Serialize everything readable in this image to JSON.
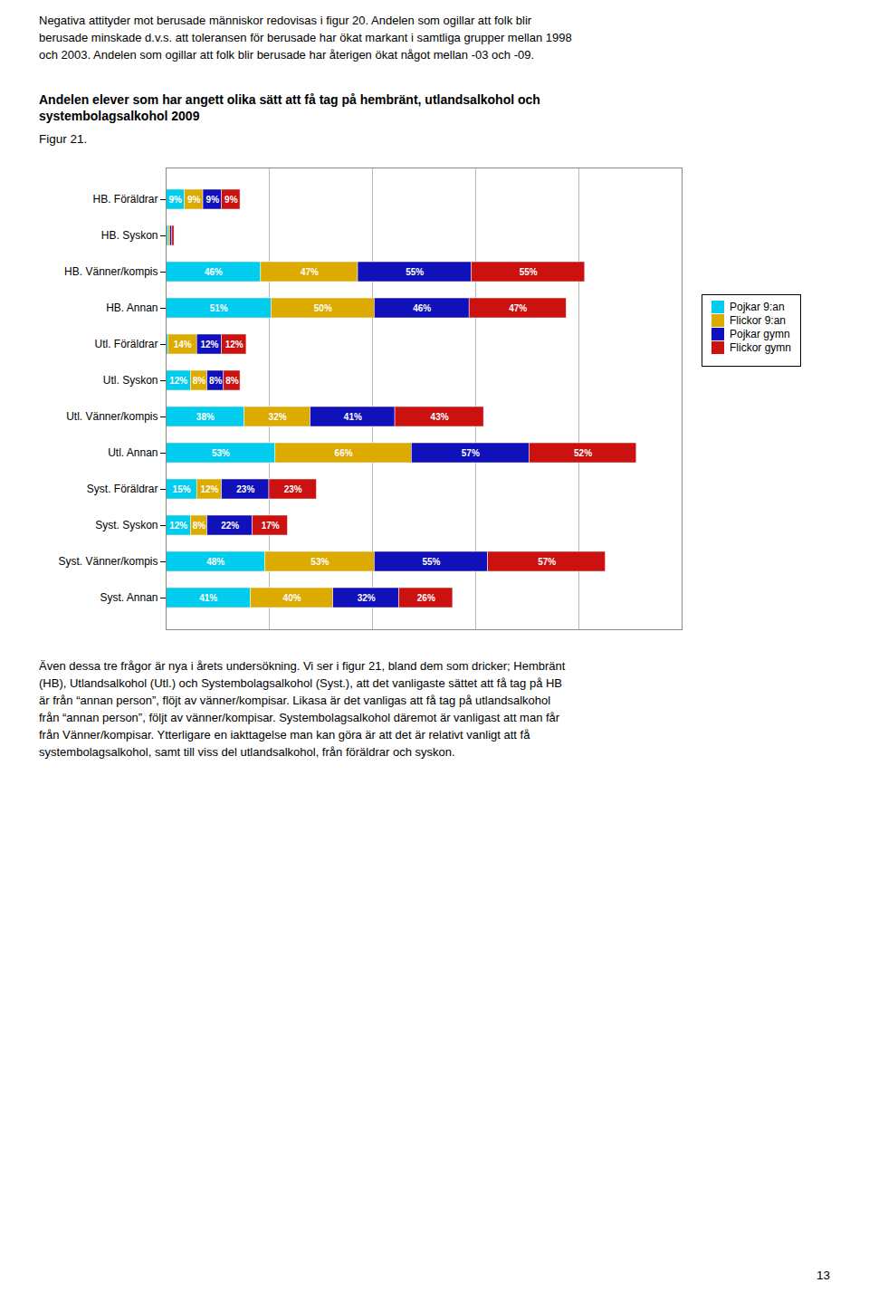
{
  "chart_data": {
    "type": "bar",
    "orientation": "horizontal",
    "stacked": true,
    "title": "Andelen elever som har angett olika sätt att få tag på hembränt, utlandsalkohol och\nsystembolagsalkohol 2009",
    "subtitle": "Figur 21.",
    "annotations": [
      "Negativa attityder mot berusade människor redovisas i figur 20. Andelen som ogillar att folk blir\nberusade minskade d.v.s. att toleransen för berusade har ökat markant i samtliga grupper mellan 1998\noch 2003. Andelen som ogillar att folk blir berusade har återigen ökat något mellan -03 och -09.",
      "Även dessa tre frågor är nya i årets undersökning. Vi ser i figur 21, bland dem som dricker; Hembränt\n(HB), Utlandsalkohol (Utl.) och Systembolagsalkohol (Syst.), att det vanligaste sättet att få tag på HB\när från “annan person”, flöjt av vänner/kompisar. Likasa är det vanligas att få tag på utlandsalkohol\nfrån “annan person”, följt av vänner/kompisar. Systembolagsalkohol däremot är vanligast att man får\nfrån Vänner/kompisar. Ytterligare en iakttagelse man kan göra är att det är relativt vanligt att få\nsystembolagsalkohol, samt till viss del utlandsalkohol, från föräldrar och syskon.",
      "13"
    ],
    "categories": [
      "HB. Föräldrar",
      "HB. Syskon",
      "HB. Vänner/kompis",
      "HB. Annan",
      "Utl. Föräldrar",
      "Utl. Syskon",
      "Utl. Vänner/kompis",
      "Utl. Annan",
      "Syst. Föräldrar",
      "Syst. Syskon",
      "Syst. Vänner/kompis",
      "Syst. Annan"
    ],
    "series": [
      {
        "name": "Pojkar 9:an",
        "color": "#00CCEE",
        "values": [
          9,
          1,
          46,
          51,
          1,
          12,
          38,
          53,
          15,
          12,
          48,
          41
        ],
        "value_labels": [
          "9%",
          null,
          "46%",
          "51%",
          null,
          "12%",
          "38%",
          "53%",
          "15%",
          "12%",
          "48%",
          "41%"
        ]
      },
      {
        "name": "Flickor 9:an",
        "color": "#DDAA00",
        "values": [
          9,
          1,
          47,
          50,
          14,
          8,
          32,
          66,
          12,
          8,
          53,
          40
        ],
        "value_labels": [
          "9%",
          null,
          "47%",
          "50%",
          "14%",
          "8%",
          "32%",
          "66%",
          "12%",
          "8%",
          "53%",
          "40%"
        ]
      },
      {
        "name": "Pojkar gymn",
        "color": "#1111BB",
        "values": [
          9,
          1,
          55,
          46,
          12,
          8,
          41,
          57,
          23,
          22,
          55,
          32
        ],
        "value_labels": [
          "9%",
          null,
          "55%",
          "46%",
          "12%",
          "8%",
          "41%",
          "57%",
          "23%",
          "22%",
          "55%",
          "32%"
        ]
      },
      {
        "name": "Flickor gymn",
        "color": "#CC1111",
        "values": [
          9,
          1,
          55,
          47,
          12,
          8,
          43,
          52,
          23,
          17,
          57,
          26
        ],
        "value_labels": [
          "9%",
          null,
          "55%",
          "47%",
          "12%",
          "8%",
          "43%",
          "52%",
          "23%",
          "17%",
          "57%",
          "26%"
        ]
      }
    ],
    "xlim": [
      0,
      250
    ],
    "xticks": [
      0,
      50,
      100,
      150,
      200,
      250
    ],
    "grid": true,
    "tick_labels": "y",
    "data_labels": true,
    "legend": "right"
  }
}
